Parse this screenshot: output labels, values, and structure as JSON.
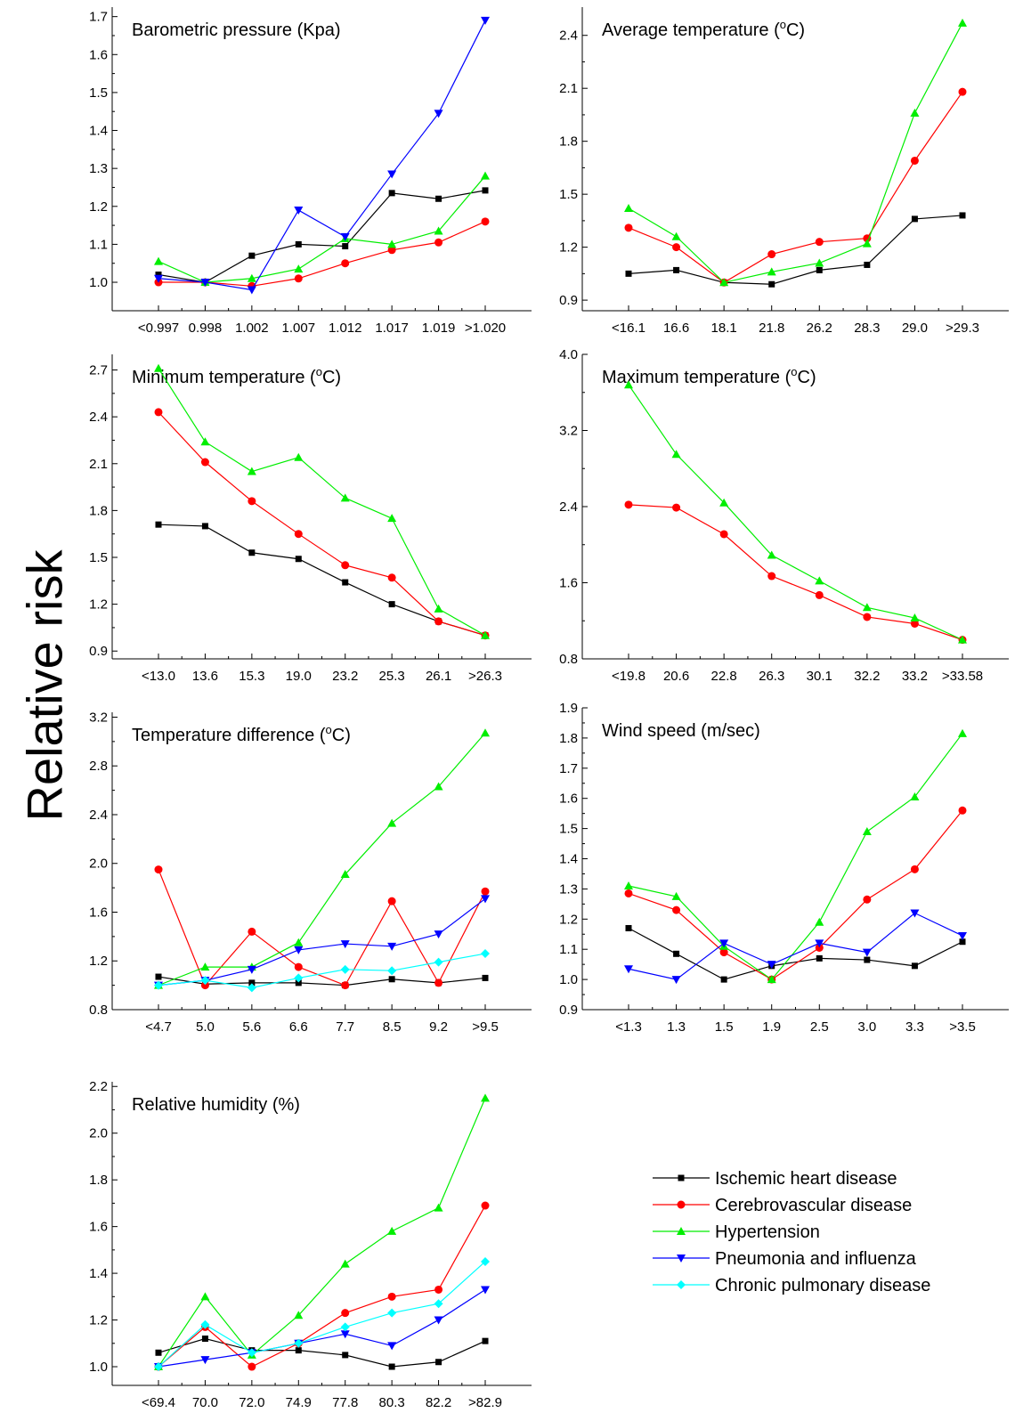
{
  "y_axis_label": "Relative risk",
  "legend": {
    "position": "bottom-right",
    "entries": [
      {
        "name": "Ischemic heart disease",
        "color": "#000000",
        "marker": "square"
      },
      {
        "name": "Cerebrovascular disease",
        "color": "#ff0000",
        "marker": "circle"
      },
      {
        "name": "Hypertension",
        "color": "#00ee00",
        "marker": "triangle-up"
      },
      {
        "name": "Pneumonia and influenza",
        "color": "#0000ff",
        "marker": "triangle-down"
      },
      {
        "name": "Chronic pulmonary disease",
        "color": "#00ffff",
        "marker": "diamond"
      }
    ]
  },
  "chart_data": [
    {
      "type": "line",
      "title": "Barometric pressure (Kpa)",
      "categories": [
        "<0.997",
        "0.998",
        "1.002",
        "1.007",
        "1.012",
        "1.017",
        "1.019",
        ">1.020"
      ],
      "ylim": [
        0.925,
        1.725
      ],
      "yticks": [
        "1.0",
        "1.1",
        "1.2",
        "1.3",
        "1.4",
        "1.5",
        "1.6",
        "1.7"
      ],
      "series": [
        {
          "name": "Ischemic heart disease",
          "values": [
            1.02,
            1.0,
            1.07,
            1.1,
            1.095,
            1.235,
            1.22,
            1.242
          ]
        },
        {
          "name": "Cerebrovascular disease",
          "values": [
            1.0,
            1.0,
            0.99,
            1.01,
            1.05,
            1.085,
            1.105,
            1.16
          ]
        },
        {
          "name": "Hypertension",
          "values": [
            1.055,
            1.0,
            1.01,
            1.035,
            1.115,
            1.1,
            1.135,
            1.28
          ]
        },
        {
          "name": "Pneumonia and influenza",
          "values": [
            1.01,
            1.0,
            0.98,
            1.19,
            1.12,
            1.285,
            1.445,
            1.69
          ]
        }
      ]
    },
    {
      "type": "line",
      "title": "Average temperature (",
      "title_sup": "o",
      "title_end": "C)",
      "categories": [
        "<16.1",
        "16.6",
        "18.1",
        "21.8",
        "26.2",
        "28.3",
        "29.0",
        ">29.3"
      ],
      "ylim": [
        0.84,
        2.56
      ],
      "yticks": [
        "0.9",
        "1.2",
        "1.5",
        "1.8",
        "2.1",
        "2.4"
      ],
      "series": [
        {
          "name": "Ischemic heart disease",
          "values": [
            1.05,
            1.07,
            1.0,
            0.99,
            1.07,
            1.1,
            1.36,
            1.38
          ]
        },
        {
          "name": "Cerebrovascular disease",
          "values": [
            1.31,
            1.2,
            1.0,
            1.16,
            1.23,
            1.25,
            1.69,
            2.08
          ]
        },
        {
          "name": "Hypertension",
          "values": [
            1.42,
            1.26,
            1.0,
            1.06,
            1.11,
            1.22,
            1.96,
            2.47
          ]
        }
      ]
    },
    {
      "type": "line",
      "title": "Minimum temperature (",
      "title_sup": "o",
      "title_end": "C)",
      "categories": [
        "<13.0",
        "13.6",
        "15.3",
        "19.0",
        "23.2",
        "25.3",
        "26.1",
        ">26.3"
      ],
      "ylim": [
        0.85,
        2.8
      ],
      "yticks": [
        "0.9",
        "1.2",
        "1.5",
        "1.8",
        "2.1",
        "2.4",
        "2.7"
      ],
      "series": [
        {
          "name": "Ischemic heart disease",
          "values": [
            1.71,
            1.7,
            1.53,
            1.49,
            1.34,
            1.2,
            1.09,
            1.0
          ]
        },
        {
          "name": "Cerebrovascular disease",
          "values": [
            2.43,
            2.11,
            1.86,
            1.65,
            1.45,
            1.37,
            1.09,
            1.0
          ]
        },
        {
          "name": "Hypertension",
          "values": [
            2.71,
            2.24,
            2.05,
            2.14,
            1.88,
            1.75,
            1.17,
            1.0
          ]
        }
      ]
    },
    {
      "type": "line",
      "title": "Maximum temperature (",
      "title_sup": "o",
      "title_end": "C)",
      "categories": [
        "<19.8",
        "20.6",
        "22.8",
        "26.3",
        "30.1",
        "32.2",
        "33.2",
        ">33.58"
      ],
      "ylim": [
        0.8,
        4.0
      ],
      "yticks": [
        "0.8",
        "1.6",
        "2.4",
        "3.2",
        "4.0"
      ],
      "series": [
        {
          "name": "Cerebrovascular disease",
          "values": [
            2.42,
            2.39,
            2.11,
            1.67,
            1.47,
            1.24,
            1.17,
            1.0
          ]
        },
        {
          "name": "Hypertension",
          "values": [
            3.68,
            2.95,
            2.44,
            1.89,
            1.62,
            1.34,
            1.23,
            1.0
          ]
        }
      ]
    },
    {
      "type": "line",
      "title": "Temperature difference (",
      "title_sup": "o",
      "title_end": "C)",
      "categories": [
        "<4.7",
        "5.0",
        "5.6",
        "6.6",
        "7.7",
        "8.5",
        "9.2",
        ">9.5"
      ],
      "ylim": [
        0.8,
        3.24
      ],
      "yticks": [
        "0.8",
        "1.2",
        "1.6",
        "2.0",
        "2.4",
        "2.8",
        "3.2"
      ],
      "series": [
        {
          "name": "Ischemic heart disease",
          "values": [
            1.07,
            1.01,
            1.02,
            1.02,
            1.0,
            1.05,
            1.02,
            1.06
          ]
        },
        {
          "name": "Cerebrovascular disease",
          "values": [
            1.95,
            1.0,
            1.44,
            1.15,
            1.0,
            1.69,
            1.02,
            1.77
          ]
        },
        {
          "name": "Hypertension",
          "values": [
            1.0,
            1.15,
            1.15,
            1.35,
            1.91,
            2.33,
            2.63,
            3.07
          ]
        },
        {
          "name": "Pneumonia and influenza",
          "values": [
            1.0,
            1.04,
            1.13,
            1.29,
            1.34,
            1.32,
            1.42,
            1.71
          ]
        },
        {
          "name": "Chronic pulmonary disease",
          "values": [
            1.0,
            1.04,
            0.98,
            1.06,
            1.13,
            1.12,
            1.19,
            1.26
          ]
        }
      ]
    },
    {
      "type": "line",
      "title": "Wind speed (m/sec)",
      "categories": [
        "<1.3",
        "1.3",
        "1.5",
        "1.9",
        "2.5",
        "3.0",
        "3.3",
        ">3.5"
      ],
      "ylim": [
        0.9,
        1.9
      ],
      "yticks": [
        "0.9",
        "1.0",
        "1.1",
        "1.2",
        "1.3",
        "1.4",
        "1.5",
        "1.6",
        "1.7",
        "1.8",
        "1.9"
      ],
      "series": [
        {
          "name": "Ischemic heart disease",
          "values": [
            1.17,
            1.085,
            1.0,
            1.045,
            1.07,
            1.065,
            1.045,
            1.125
          ]
        },
        {
          "name": "Cerebrovascular disease",
          "values": [
            1.285,
            1.23,
            1.09,
            1.0,
            1.105,
            1.265,
            1.365,
            1.56
          ]
        },
        {
          "name": "Hypertension",
          "values": [
            1.31,
            1.275,
            1.11,
            1.0,
            1.19,
            1.49,
            1.605,
            1.815
          ]
        },
        {
          "name": "Pneumonia and influenza",
          "values": [
            1.035,
            1.0,
            1.12,
            1.05,
            1.12,
            1.09,
            1.22,
            1.145
          ]
        }
      ]
    },
    {
      "type": "line",
      "title": "Relative humidity (%)",
      "categories": [
        "<69.4",
        "70.0",
        "72.0",
        "74.9",
        "77.8",
        "80.3",
        "82.2",
        ">82.9"
      ],
      "ylim": [
        0.92,
        2.22
      ],
      "yticks": [
        "1.0",
        "1.2",
        "1.4",
        "1.6",
        "1.8",
        "2.0",
        "2.2"
      ],
      "series": [
        {
          "name": "Ischemic heart disease",
          "values": [
            1.06,
            1.12,
            1.07,
            1.07,
            1.05,
            1.0,
            1.02,
            1.11
          ]
        },
        {
          "name": "Cerebrovascular disease",
          "values": [
            1.0,
            1.17,
            1.0,
            1.1,
            1.23,
            1.3,
            1.33,
            1.69
          ]
        },
        {
          "name": "Hypertension",
          "values": [
            1.0,
            1.3,
            1.05,
            1.22,
            1.44,
            1.58,
            1.68,
            2.15
          ]
        },
        {
          "name": "Pneumonia and influenza",
          "values": [
            1.0,
            1.03,
            1.06,
            1.1,
            1.14,
            1.09,
            1.2,
            1.33
          ]
        },
        {
          "name": "Chronic pulmonary disease",
          "values": [
            1.0,
            1.18,
            1.06,
            1.1,
            1.17,
            1.23,
            1.27,
            1.45
          ]
        }
      ]
    }
  ]
}
